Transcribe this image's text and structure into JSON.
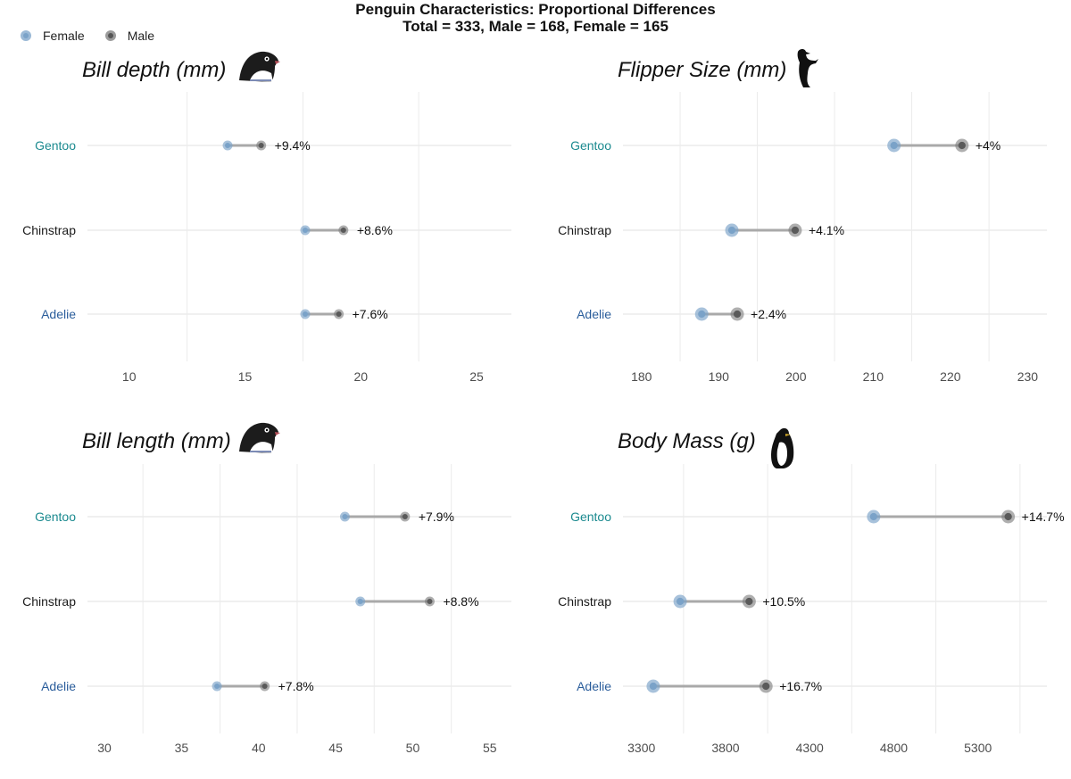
{
  "title": {
    "line1": "Penguin Characteristics: Proportional Differences",
    "line2": "Total = 333, Male = 168, Female = 165"
  },
  "legend": [
    {
      "label": "Female",
      "color": "#7aa2c8"
    },
    {
      "label": "Male",
      "color": "#7a7a7a"
    }
  ],
  "colors": {
    "female": "#7aa2c8",
    "male": "#7a7a7a",
    "segment": "#a9a9a9",
    "grid": "#ebebeb",
    "Gentoo": "#1b8a8f",
    "Chinstrap": "#1a1a1a",
    "Adelie": "#2a5d9b"
  },
  "chart_data": [
    {
      "type": "dumbbell",
      "title": "Bill depth (mm)",
      "icon": "adelie-penguin-head-icon",
      "xlim": [
        8.2,
        26.5
      ],
      "xticks": [
        10,
        15,
        20,
        25
      ],
      "categories": [
        "Gentoo",
        "Chinstrap",
        "Adelie"
      ],
      "female": [
        14.25,
        17.6,
        17.6
      ],
      "male": [
        15.7,
        19.25,
        19.05
      ],
      "labels": [
        "+9.4%",
        "+8.6%",
        "+7.6%"
      ]
    },
    {
      "type": "dumbbell",
      "title": "Flipper Size (mm)",
      "icon": "penguin-silhouette-icon",
      "xlim": [
        177.6,
        232.5
      ],
      "xticks": [
        180,
        190,
        200,
        210,
        220,
        230
      ],
      "categories": [
        "Gentoo",
        "Chinstrap",
        "Adelie"
      ],
      "female": [
        212.7,
        191.7,
        187.8
      ],
      "male": [
        221.5,
        199.9,
        192.4
      ],
      "labels": [
        "+4%",
        "+4.1%",
        "+2.4%"
      ]
    },
    {
      "type": "dumbbell",
      "title": "Bill length (mm)",
      "icon": "adelie-penguin-head-icon",
      "xlim": [
        28.9,
        56.4
      ],
      "xticks": [
        30,
        35,
        40,
        45,
        50,
        55
      ],
      "categories": [
        "Gentoo",
        "Chinstrap",
        "Adelie"
      ],
      "female": [
        45.6,
        46.6,
        37.3
      ],
      "male": [
        49.5,
        51.1,
        40.4
      ],
      "labels": [
        "+7.9%",
        "+8.8%",
        "+7.8%"
      ]
    },
    {
      "type": "dumbbell",
      "title": "Body Mass (g)",
      "icon": "emperor-penguin-icon",
      "xlim": [
        3190,
        5710
      ],
      "xticks": [
        3300,
        3800,
        4300,
        4800,
        5300
      ],
      "categories": [
        "Gentoo",
        "Chinstrap",
        "Adelie"
      ],
      "female": [
        4680,
        3530,
        3370
      ],
      "male": [
        5480,
        3940,
        4040
      ],
      "labels": [
        "+14.7%",
        "+10.5%",
        "+16.7%"
      ]
    }
  ]
}
